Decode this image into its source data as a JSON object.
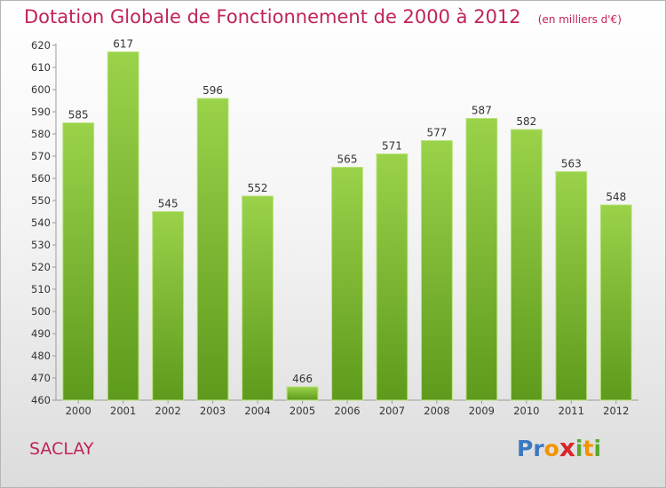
{
  "title": "Dotation Globale de Fonctionnement de 2000 à 2012",
  "subtitle": "(en milliers d'€)",
  "commune": "SACLAY",
  "brand": {
    "letters": [
      {
        "char": "P",
        "color": "#3a78c2"
      },
      {
        "char": "r",
        "color": "#3a78c2"
      },
      {
        "char": "o",
        "color": "#f29400"
      },
      {
        "char": "x",
        "color": "#d9262c"
      },
      {
        "char": "i",
        "color": "#59a831"
      },
      {
        "char": "t",
        "color": "#f29400"
      },
      {
        "char": "i",
        "color": "#59a831"
      }
    ]
  },
  "colors": {
    "accent": "#c0235a",
    "bar_top": "#9ad24a",
    "bar_bottom": "#5e9a1c"
  },
  "chart_data": {
    "type": "bar",
    "title": "Dotation Globale de Fonctionnement de 2000 à 2012",
    "subtitle": "(en milliers d'€)",
    "xlabel": "",
    "ylabel": "",
    "categories": [
      "2000",
      "2001",
      "2002",
      "2003",
      "2004",
      "2005",
      "2006",
      "2007",
      "2008",
      "2009",
      "2010",
      "2011",
      "2012"
    ],
    "values": [
      585,
      617,
      545,
      596,
      552,
      466,
      565,
      571,
      577,
      587,
      582,
      563,
      548
    ],
    "ylim": [
      460,
      620
    ],
    "yticks": [
      460,
      470,
      480,
      490,
      500,
      510,
      520,
      530,
      540,
      550,
      560,
      570,
      580,
      590,
      600,
      610,
      620
    ],
    "grid": false,
    "legend": "none"
  }
}
